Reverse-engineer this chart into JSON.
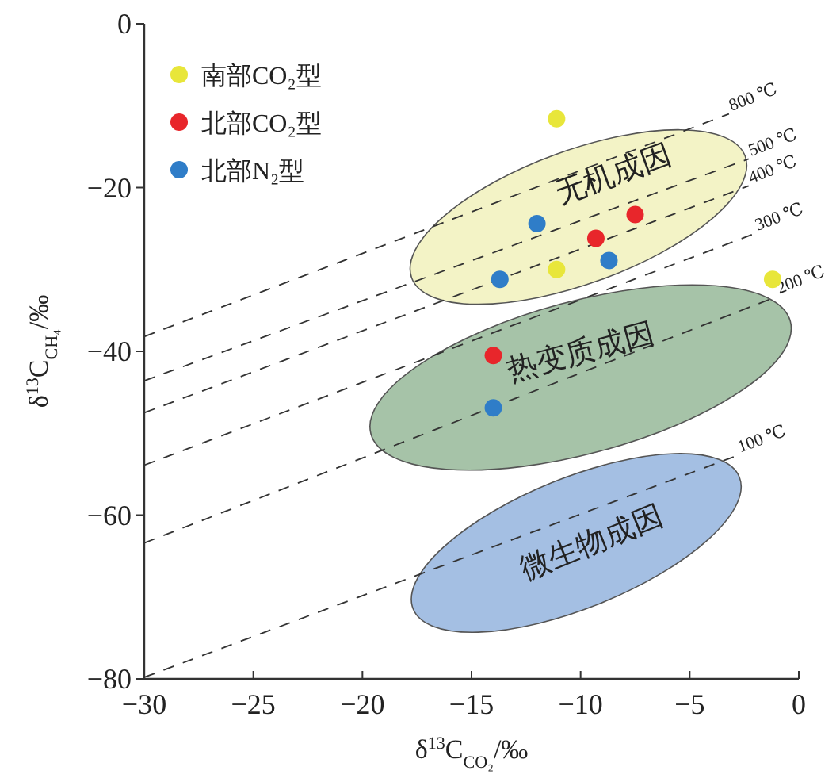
{
  "chart_data": {
    "type": "scatter",
    "xlabel": "δ$^{13}$C$_{CO₂}$/‰",
    "ylabel": "δ$^{13}$C$_{CH₄}$/‰",
    "xlim": [
      -30,
      0
    ],
    "ylim": [
      -80,
      0
    ],
    "xticks": [
      {
        "value": -30,
        "label": "−30"
      },
      {
        "value": -25,
        "label": "−25"
      },
      {
        "value": -20,
        "label": "−20"
      },
      {
        "value": -15,
        "label": "−15"
      },
      {
        "value": -10,
        "label": "−10"
      },
      {
        "value": -5,
        "label": "−5"
      },
      0
    ],
    "yticks": [
      {
        "value": -80,
        "label": "−80"
      },
      {
        "value": -60,
        "label": "−60"
      },
      {
        "value": -40,
        "label": "−40"
      },
      {
        "value": -20,
        "label": "−20"
      },
      0
    ],
    "grid": false,
    "legend": "top left",
    "marker": "circle",
    "annotations": [
      "无机成因",
      "热变质成因",
      "微生物成因"
    ],
    "series": [
      {
        "name": "800 ℃",
        "type": "line",
        "line_style": "dashed",
        "marker": "none",
        "color": "#333333",
        "x": [
          -30,
          -3.2
        ],
        "values": [
          -38.2,
          -11.0
        ]
      },
      {
        "name": "500 ℃",
        "type": "line",
        "line_style": "dashed",
        "marker": "none",
        "color": "#333333",
        "x": [
          -30,
          -2.3
        ],
        "values": [
          -43.6,
          -16.5
        ]
      },
      {
        "name": "400 ℃",
        "type": "line",
        "line_style": "dashed",
        "marker": "none",
        "color": "#333333",
        "x": [
          -30,
          -2.3
        ],
        "values": [
          -47.5,
          -19.8
        ]
      },
      {
        "name": "300 ℃",
        "type": "line",
        "line_style": "dashed",
        "marker": "none",
        "color": "#333333",
        "x": [
          -30,
          -2.0
        ],
        "values": [
          -53.9,
          -25.6
        ]
      },
      {
        "name": "200 ℃",
        "type": "line",
        "line_style": "dashed",
        "marker": "none",
        "color": "#333333",
        "x": [
          -30,
          -1.0
        ],
        "values": [
          -63.4,
          -33.3
        ]
      },
      {
        "name": "100 ℃",
        "type": "line",
        "line_style": "dashed",
        "marker": "none",
        "color": "#333333",
        "x": [
          -30,
          -2.8
        ],
        "values": [
          -79.8,
          -52.7
        ]
      },
      {
        "name": "南部CO₂型",
        "color": "#e8e63a",
        "x": [
          -11.1,
          -11.1,
          -1.2
        ],
        "values": [
          -11.6,
          -30.0,
          -31.2
        ]
      },
      {
        "name": "北部CO₂型",
        "color": "#e8262b",
        "x": [
          -7.5,
          -9.3,
          -14.0
        ],
        "values": [
          -23.3,
          -26.2,
          -40.5
        ]
      },
      {
        "name": "北部N₂型",
        "color": "#2f7dc8",
        "x": [
          -12.0,
          -13.7,
          -8.7,
          -14.0
        ],
        "values": [
          -24.4,
          -31.2,
          -28.9,
          -46.9
        ]
      }
    ]
  }
}
